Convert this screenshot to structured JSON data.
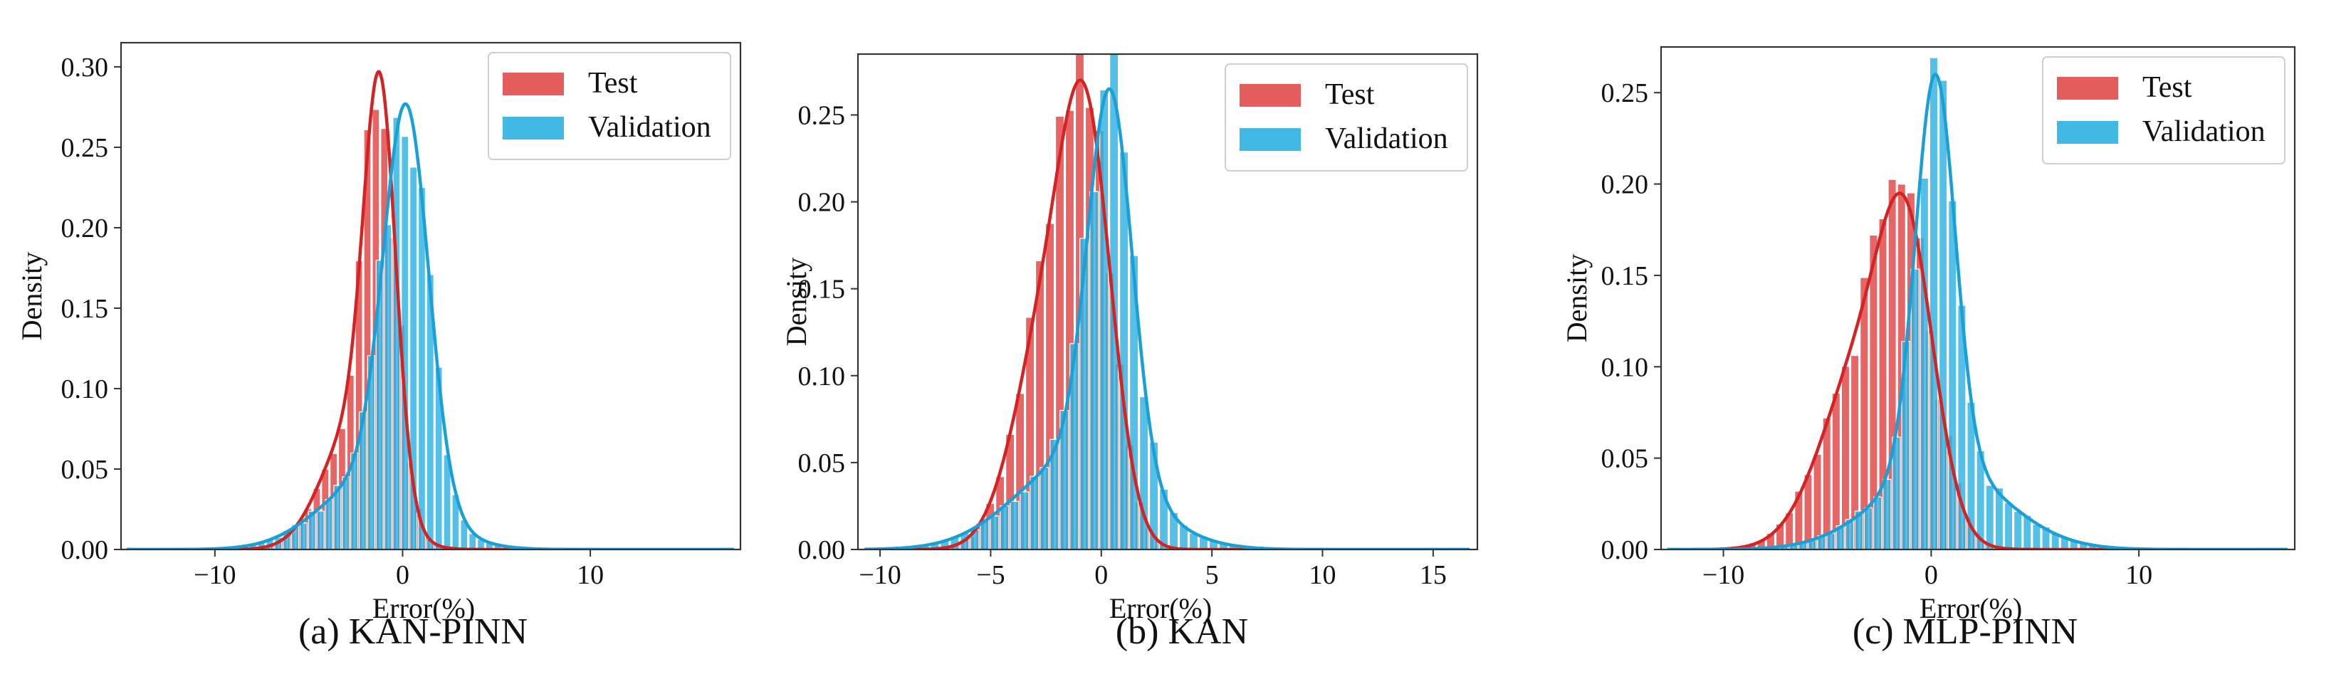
{
  "colors": {
    "test": "#E24A4A",
    "validation": "#2EB1E2",
    "test_line": "#D42323",
    "validation_line": "#1AA0D6",
    "overlap": "#3E78AE",
    "axes": "#333333"
  },
  "chart_data": [
    {
      "type": "histogram",
      "caption": "(a) KAN-PINN",
      "xlabel": "Error(%)",
      "ylabel": "Density",
      "xlim": [
        -15,
        18
      ],
      "ylim": [
        0,
        0.315
      ],
      "xticks": [
        -10,
        0,
        10
      ],
      "xtick_labels": [
        "−10",
        "0",
        "10"
      ],
      "yticks": [
        0.0,
        0.05,
        0.1,
        0.15,
        0.2,
        0.25,
        0.3
      ],
      "ytick_labels": [
        "0.00",
        "0.05",
        "0.10",
        "0.15",
        "0.20",
        "0.25",
        "0.30"
      ],
      "legend": {
        "position": "top-right",
        "entries": [
          "Test",
          "Validation"
        ]
      },
      "series": [
        {
          "name": "Test",
          "type": "gaussian_mixture",
          "components": [
            {
              "mean": -1.2,
              "sd": 0.85,
              "weight": 0.62
            },
            {
              "mean": -2.6,
              "sd": 1.7,
              "weight": 0.38
            }
          ],
          "peak": 0.297
        },
        {
          "name": "Validation",
          "type": "gaussian_mixture",
          "components": [
            {
              "mean": 0.2,
              "sd": 1.2,
              "weight": 0.7
            },
            {
              "mean": -1.5,
              "sd": 2.8,
              "weight": 0.3
            }
          ],
          "peak": 0.277
        }
      ]
    },
    {
      "type": "histogram",
      "caption": "(b) KAN",
      "xlabel": "Error(%)",
      "ylabel": "Density",
      "xlim": [
        -11,
        17
      ],
      "ylim": [
        0,
        0.285
      ],
      "xticks": [
        -10,
        -5,
        0,
        5,
        10,
        15
      ],
      "xtick_labels": [
        "−10",
        "−5",
        "0",
        "5",
        "10",
        "15"
      ],
      "yticks": [
        0.0,
        0.05,
        0.1,
        0.15,
        0.2,
        0.25
      ],
      "ytick_labels": [
        "0.00",
        "0.05",
        "0.10",
        "0.15",
        "0.20",
        "0.25"
      ],
      "legend": {
        "position": "top-right",
        "entries": [
          "Test",
          "Validation"
        ]
      },
      "series": [
        {
          "name": "Test",
          "type": "gaussian_mixture",
          "components": [
            {
              "mean": -0.6,
              "sd": 1.15,
              "weight": 0.55
            },
            {
              "mean": -2.4,
              "sd": 1.5,
              "weight": 0.45
            }
          ],
          "peak": 0.27
        },
        {
          "name": "Validation",
          "type": "gaussian_mixture",
          "components": [
            {
              "mean": 0.4,
              "sd": 1.0,
              "weight": 0.6
            },
            {
              "mean": -1.0,
              "sd": 2.8,
              "weight": 0.4
            }
          ],
          "peak": 0.265
        }
      ]
    },
    {
      "type": "histogram",
      "caption": "(c) MLP-PINN",
      "xlabel": "Error(%)",
      "ylabel": "Density",
      "xlim": [
        -13,
        17.5
      ],
      "ylim": [
        0,
        0.275
      ],
      "xticks": [
        -10,
        0,
        10
      ],
      "xtick_labels": [
        "−10",
        "0",
        "10"
      ],
      "yticks": [
        0.0,
        0.05,
        0.1,
        0.15,
        0.2,
        0.25
      ],
      "ytick_labels": [
        "0.00",
        "0.05",
        "0.10",
        "0.15",
        "0.20",
        "0.25"
      ],
      "legend": {
        "position": "top-right",
        "entries": [
          "Test",
          "Validation"
        ]
      },
      "series": [
        {
          "name": "Test",
          "type": "gaussian_mixture",
          "components": [
            {
              "mean": -1.1,
              "sd": 1.3,
              "weight": 0.45
            },
            {
              "mean": -3.2,
              "sd": 2.0,
              "weight": 0.55
            }
          ],
          "peak": 0.195
        },
        {
          "name": "Validation",
          "type": "gaussian_mixture",
          "components": [
            {
              "mean": 0.2,
              "sd": 0.95,
              "weight": 0.6
            },
            {
              "mean": 0.5,
              "sd": 3.0,
              "weight": 0.4
            }
          ],
          "peak": 0.26
        }
      ]
    }
  ]
}
